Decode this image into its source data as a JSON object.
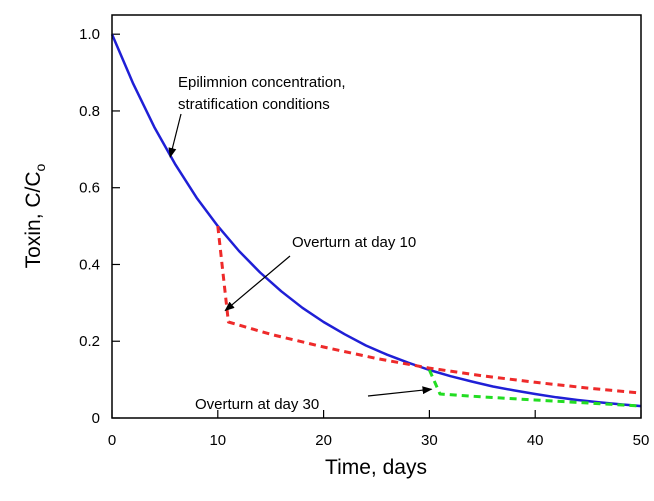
{
  "chart_data": {
    "type": "line",
    "xlabel": "Time, days",
    "ylabel": "Toxin, C/C",
    "ylabel_subscript": "o",
    "xlim": [
      0,
      50
    ],
    "ylim": [
      0,
      1.05
    ],
    "x_ticks": [
      0,
      10,
      20,
      30,
      40,
      50
    ],
    "x_tick_labels": [
      "0",
      "10",
      "20",
      "30",
      "40",
      "50"
    ],
    "y_ticks": [
      0,
      0.2,
      0.4,
      0.6,
      0.8,
      1.0
    ],
    "y_tick_labels": [
      "0",
      "0.2",
      "0.4",
      "0.6",
      "0.8",
      "1.0"
    ],
    "grid": false,
    "series": [
      {
        "color": "#1f1fd6",
        "style": "solid",
        "x": [
          0,
          2,
          4,
          6,
          8,
          10,
          12,
          14,
          16,
          18,
          20,
          22,
          24,
          26,
          28,
          30,
          32,
          34,
          36,
          38,
          40,
          42,
          44,
          46,
          48,
          50
        ],
        "y": [
          1.0,
          0.871,
          0.758,
          0.66,
          0.574,
          0.5,
          0.435,
          0.379,
          0.33,
          0.287,
          0.25,
          0.218,
          0.189,
          0.165,
          0.144,
          0.125,
          0.109,
          0.095,
          0.082,
          0.072,
          0.0625,
          0.054,
          0.047,
          0.041,
          0.036,
          0.031
        ]
      },
      {
        "color": "#ee2a2a",
        "style": "dashed",
        "x": [
          10,
          11,
          15,
          20,
          25,
          30,
          35,
          40,
          45,
          50
        ],
        "y": [
          0.5,
          0.25,
          0.218,
          0.185,
          0.155,
          0.13,
          0.11,
          0.093,
          0.078,
          0.065
        ]
      },
      {
        "color": "#22dd22",
        "style": "dashed",
        "x": [
          30,
          31,
          35,
          40,
          45,
          50
        ],
        "y": [
          0.125,
          0.0625,
          0.055,
          0.047,
          0.039,
          0.031
        ]
      }
    ],
    "annotations": [
      {
        "lines": [
          "Epilimnion concentration,",
          "stratification conditions"
        ],
        "arrow_to": [
          5.5,
          0.68
        ]
      },
      {
        "lines": [
          "Overturn at day 10"
        ],
        "arrow_to": [
          10.7,
          0.28
        ]
      },
      {
        "lines": [
          "Overturn at day 30"
        ],
        "arrow_to": [
          30.2,
          0.075
        ]
      }
    ]
  }
}
